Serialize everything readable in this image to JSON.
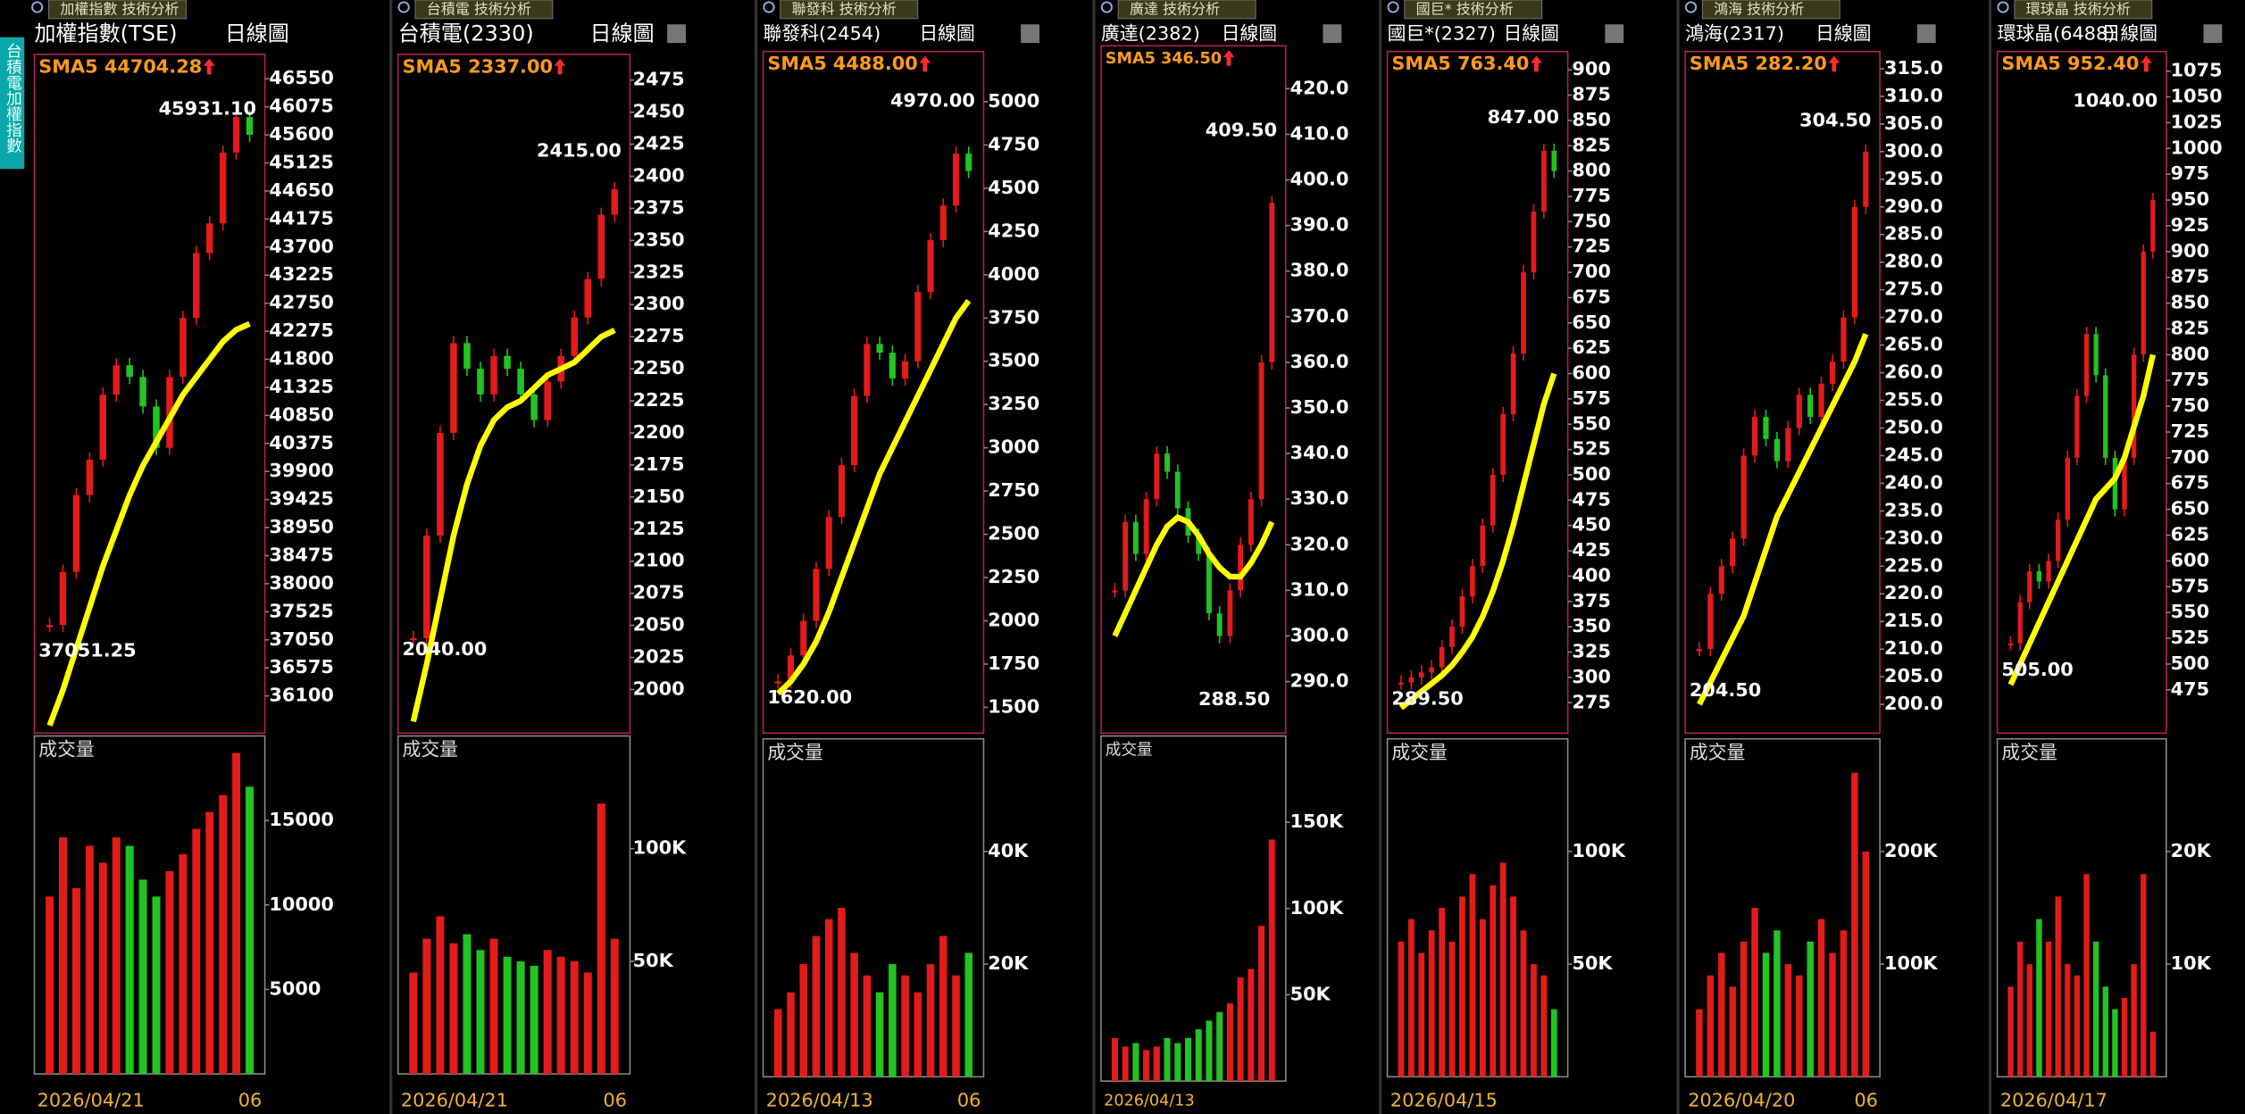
{
  "sidebar": {
    "label": "台積電加權指數"
  },
  "colors": {
    "up": "#e31b1b",
    "down": "#22c322",
    "sma": "#ffff00",
    "frame": "#b0205a",
    "sma_label": "#ff9a1a"
  },
  "panels": [
    {
      "header": "加權指數 技術分析",
      "title": "加權指數(TSE)",
      "period": "日線圖",
      "sma_label": "SMA5 44704.28",
      "price": {
        "ylim": [
          35470,
          46962
        ],
        "yticks": [
          46550,
          46075,
          45600,
          45125,
          44650,
          44175,
          43700,
          43225,
          42750,
          42275,
          41800,
          41325,
          40850,
          40375,
          39900,
          39425,
          38950,
          38475,
          38000,
          37525,
          37050,
          36575,
          36100
        ],
        "high_label": {
          "value": 45931.1,
          "label": "45931.10"
        },
        "low_label": {
          "value": 37051.25,
          "label": "37051.25"
        }
      },
      "volume": {
        "label": "成交量",
        "ylim": [
          0,
          20000
        ],
        "yticks": [
          15000,
          10000,
          5000
        ]
      },
      "start_date": "2026/04/21",
      "end_date": "06",
      "closes": [
        37300,
        38200,
        39500,
        40100,
        41200,
        41700,
        41500,
        41000,
        40300,
        41500,
        42500,
        43600,
        44100,
        45300,
        45900,
        45600
      ],
      "sma": [
        35600,
        36200,
        36900,
        37600,
        38300,
        38900,
        39500,
        40000,
        40400,
        40800,
        41200,
        41500,
        41800,
        42100,
        42300,
        42400
      ],
      "volumes": [
        10500,
        14000,
        11000,
        13500,
        12500,
        14000,
        13500,
        11500,
        10500,
        12000,
        13000,
        14500,
        15500,
        16500,
        19000,
        17000
      ]
    },
    {
      "header": "台積電 技術分析",
      "title": "台積電(2330)",
      "period": "日線圖",
      "sma_label": "SMA5 2337.00",
      "price": {
        "ylim": [
          1966,
          2495
        ],
        "yticks": [
          2475,
          2450,
          2425,
          2400,
          2375,
          2350,
          2325,
          2300,
          2275,
          2250,
          2225,
          2200,
          2175,
          2150,
          2125,
          2100,
          2075,
          2050,
          2025,
          2000
        ],
        "high_label": {
          "value": 2415,
          "label": "2415.00"
        },
        "low_label": {
          "value": 2040,
          "label": "2040.00"
        }
      },
      "volume": {
        "label": "成交量",
        "ylim": [
          0,
          150000
        ],
        "yticks": [
          {
            "value": 100000,
            "label": "100K"
          },
          {
            "value": 50000,
            "label": "50K"
          }
        ]
      },
      "start_date": "2026/04/21",
      "end_date": "06",
      "closes": [
        2040,
        2120,
        2200,
        2270,
        2250,
        2230,
        2260,
        2250,
        2230,
        2210,
        2240,
        2260,
        2290,
        2320,
        2370,
        2390
      ],
      "sma": [
        1975,
        2020,
        2070,
        2120,
        2160,
        2190,
        2210,
        2220,
        2225,
        2235,
        2245,
        2250,
        2255,
        2265,
        2275,
        2280
      ],
      "volumes": [
        45000,
        60000,
        70000,
        58000,
        62000,
        55000,
        60000,
        52000,
        50000,
        48000,
        55000,
        52000,
        50000,
        45000,
        120000,
        60000
      ]
    },
    {
      "header": "聯發科 技術分析",
      "title": "聯發科(2454)",
      "period": "日線圖",
      "sma_label": "SMA5 4488.00",
      "price": {
        "ylim": [
          1351,
          5290
        ],
        "yticks": [
          5000,
          4750,
          4500,
          4250,
          4000,
          3750,
          3500,
          3250,
          3000,
          2750,
          2500,
          2250,
          2000,
          1750,
          1500
        ],
        "high_label": {
          "value": 4970,
          "label": "4970.00"
        },
        "low_label": {
          "value": 1620,
          "label": "1620.00"
        }
      },
      "volume": {
        "label": "成交量",
        "ylim": [
          0,
          60000
        ],
        "yticks": [
          {
            "value": 40000,
            "label": "40K"
          },
          {
            "value": 20000,
            "label": "20K"
          }
        ]
      },
      "start_date": "2026/04/13",
      "end_date": "06",
      "closes": [
        1650,
        1800,
        2000,
        2300,
        2600,
        2900,
        3300,
        3600,
        3550,
        3400,
        3500,
        3900,
        4200,
        4400,
        4700,
        4600
      ],
      "sma": [
        1580,
        1650,
        1750,
        1880,
        2050,
        2250,
        2450,
        2650,
        2850,
        3000,
        3150,
        3300,
        3450,
        3600,
        3750,
        3850
      ],
      "volumes": [
        12000,
        15000,
        20000,
        25000,
        28000,
        30000,
        22000,
        18000,
        15000,
        20000,
        18000,
        15000,
        20000,
        25000,
        18000,
        22000
      ]
    },
    {
      "header": "廣達 技術分析",
      "title": "廣達(2382)",
      "period": "日線圖",
      "sma_label": "SMA5 346.50",
      "price": {
        "ylim": [
          278.7,
          429.4
        ],
        "yticks": [
          {
            "value": 420,
            "label": "420.0"
          },
          {
            "value": 410,
            "label": "410.0"
          },
          {
            "value": 400,
            "label": "400.0"
          },
          {
            "value": 390,
            "label": "390.0"
          },
          {
            "value": 380,
            "label": "380.0"
          },
          {
            "value": 370,
            "label": "370.0"
          },
          {
            "value": 360,
            "label": "360.0"
          },
          {
            "value": 350,
            "label": "350.0"
          },
          {
            "value": 340,
            "label": "340.0"
          },
          {
            "value": 330,
            "label": "330.0"
          },
          {
            "value": 320,
            "label": "320.0"
          },
          {
            "value": 310,
            "label": "310.0"
          },
          {
            "value": 300,
            "label": "300.0"
          },
          {
            "value": 290,
            "label": "290.0"
          }
        ],
        "high_label": {
          "value": 409.5,
          "label": "409.50"
        },
        "low_label": {
          "value": 288.5,
          "label": "288.50"
        }
      },
      "volume": {
        "label": "成交量",
        "ylim": [
          0,
          200000
        ],
        "yticks": [
          {
            "value": 150000,
            "label": "150K"
          },
          {
            "value": 100000,
            "label": "100K"
          },
          {
            "value": 50000,
            "label": "50K"
          }
        ]
      },
      "start_date": "2026/04/13",
      "closes": [
        310,
        325,
        318,
        330,
        340,
        336,
        328,
        322,
        318,
        305,
        300,
        310,
        320,
        330,
        360,
        395
      ],
      "sma": [
        300,
        305,
        310,
        315,
        320,
        324,
        326,
        325,
        322,
        318,
        315,
        313,
        313,
        316,
        320,
        325
      ],
      "volumes": [
        25000,
        20000,
        22000,
        18000,
        20000,
        25000,
        22000,
        25000,
        30000,
        35000,
        40000,
        45000,
        60000,
        65000,
        90000,
        140000
      ]
    },
    {
      "header": "國巨* 技術分析",
      "title": "國巨*(2327)",
      "period": "日線圖",
      "sma_label": "SMA5 763.40",
      "price": {
        "ylim": [
          245,
          918
        ],
        "yticks": [
          900,
          875,
          850,
          825,
          800,
          775,
          750,
          725,
          700,
          675,
          650,
          625,
          600,
          575,
          550,
          525,
          500,
          475,
          450,
          425,
          400,
          375,
          350,
          325,
          300,
          275
        ],
        "high_label": {
          "value": 847,
          "label": "847.00"
        },
        "low_label": {
          "value": 289.5,
          "label": "289.50"
        }
      },
      "volume": {
        "label": "成交量",
        "ylim": [
          0,
          150000
        ],
        "yticks": [
          {
            "value": 100000,
            "label": "100K"
          },
          {
            "value": 50000,
            "label": "50K"
          }
        ]
      },
      "start_date": "2026/04/15",
      "closes": [
        295,
        300,
        305,
        310,
        330,
        350,
        380,
        410,
        450,
        500,
        560,
        620,
        700,
        760,
        820,
        800
      ],
      "sma": [
        270,
        278,
        286,
        294,
        302,
        312,
        325,
        340,
        360,
        385,
        415,
        450,
        490,
        530,
        570,
        600
      ],
      "volumes": [
        60000,
        70000,
        55000,
        65000,
        75000,
        60000,
        80000,
        90000,
        70000,
        85000,
        95000,
        80000,
        65000,
        50000,
        45000,
        30000
      ]
    },
    {
      "header": "鴻海 技術分析",
      "title": "鴻海(2317)",
      "period": "日線圖",
      "sma_label": "SMA5 282.20",
      "price": {
        "ylim": [
          194.8,
          318.1
        ],
        "yticks": [
          {
            "value": 315,
            "label": "315.0"
          },
          {
            "value": 310,
            "label": "310.0"
          },
          {
            "value": 305,
            "label": "305.0"
          },
          {
            "value": 300,
            "label": "300.0"
          },
          {
            "value": 295,
            "label": "295.0"
          },
          {
            "value": 290,
            "label": "290.0"
          },
          {
            "value": 285,
            "label": "285.0"
          },
          {
            "value": 280,
            "label": "280.0"
          },
          {
            "value": 275,
            "label": "275.0"
          },
          {
            "value": 270,
            "label": "270.0"
          },
          {
            "value": 265,
            "label": "265.0"
          },
          {
            "value": 260,
            "label": "260.0"
          },
          {
            "value": 255,
            "label": "255.0"
          },
          {
            "value": 250,
            "label": "250.0"
          },
          {
            "value": 245,
            "label": "245.0"
          },
          {
            "value": 240,
            "label": "240.0"
          },
          {
            "value": 235,
            "label": "235.0"
          },
          {
            "value": 230,
            "label": "230.0"
          },
          {
            "value": 225,
            "label": "225.0"
          },
          {
            "value": 220,
            "label": "220.0"
          },
          {
            "value": 215,
            "label": "215.0"
          },
          {
            "value": 210,
            "label": "210.0"
          },
          {
            "value": 205,
            "label": "205.0"
          },
          {
            "value": 200,
            "label": "200.0"
          }
        ],
        "high_label": {
          "value": 304.5,
          "label": "304.50"
        },
        "low_label": {
          "value": 204.5,
          "label": "204.50"
        }
      },
      "volume": {
        "label": "成交量",
        "ylim": [
          0,
          300000
        ],
        "yticks": [
          {
            "value": 200000,
            "label": "200K"
          },
          {
            "value": 100000,
            "label": "100K"
          }
        ]
      },
      "start_date": "2026/04/20",
      "end_date": "06",
      "closes": [
        210,
        220,
        225,
        230,
        245,
        252,
        248,
        244,
        250,
        256,
        252,
        258,
        262,
        270,
        290,
        300
      ],
      "sma": [
        200,
        204,
        208,
        212,
        216,
        222,
        228,
        234,
        238,
        242,
        246,
        250,
        254,
        258,
        262,
        267
      ],
      "volumes": [
        60000,
        90000,
        110000,
        80000,
        120000,
        150000,
        110000,
        130000,
        100000,
        90000,
        120000,
        140000,
        110000,
        130000,
        270000,
        200000
      ]
    },
    {
      "header": "環球晶 技術分析",
      "title": "環球晶(6488)",
      "period": "日線圖",
      "sma_label": "SMA5 952.40",
      "price": {
        "ylim": [
          433,
          1094
        ],
        "yticks": [
          1075,
          1050,
          1025,
          1000,
          975,
          950,
          925,
          900,
          875,
          850,
          825,
          800,
          775,
          750,
          725,
          700,
          675,
          650,
          625,
          600,
          575,
          550,
          525,
          500,
          475
        ],
        "high_label": {
          "value": 1040,
          "label": "1040.00"
        },
        "low_label": {
          "value": 505,
          "label": "505.00"
        }
      },
      "volume": {
        "label": "成交量",
        "ylim": [
          0,
          30000
        ],
        "yticks": [
          {
            "value": 20000,
            "label": "20K"
          },
          {
            "value": 10000,
            "label": "10K"
          }
        ]
      },
      "start_date": "2026/04/17",
      "closes": [
        520,
        560,
        590,
        580,
        600,
        640,
        700,
        760,
        820,
        780,
        700,
        650,
        700,
        800,
        900,
        950
      ],
      "sma": [
        480,
        500,
        520,
        540,
        560,
        580,
        600,
        620,
        640,
        660,
        670,
        680,
        700,
        730,
        760,
        800
      ],
      "volumes": [
        8000,
        12000,
        10000,
        14000,
        12000,
        16000,
        10000,
        9000,
        18000,
        12000,
        8000,
        6000,
        7000,
        10000,
        18000,
        4000
      ]
    }
  ]
}
